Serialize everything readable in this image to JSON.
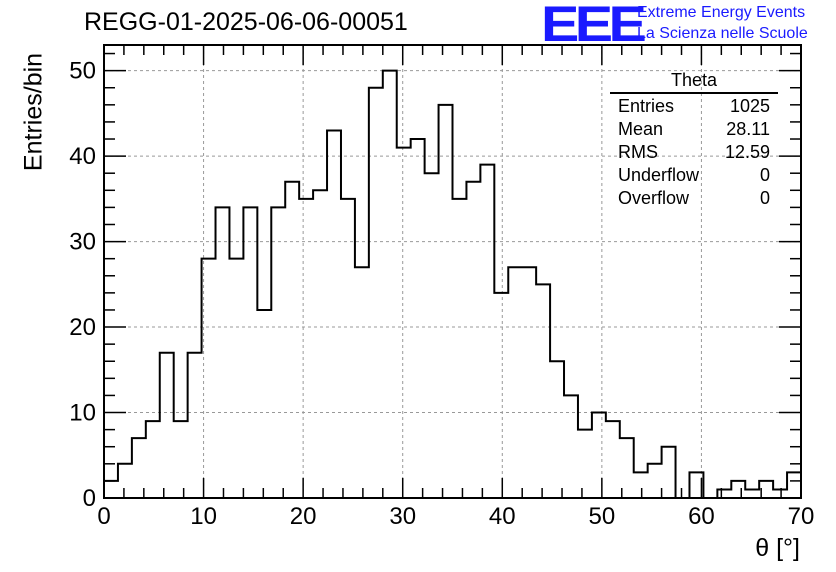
{
  "title": "REGG-01-2025-06-06-00051",
  "logo": {
    "mark": "EEE",
    "line1": "Extreme Energy Events",
    "line2": "La Scienza nelle Scuole",
    "color": "#1a1aff"
  },
  "stats": {
    "name": "Theta",
    "rows": [
      {
        "label": "Entries",
        "value": "1025"
      },
      {
        "label": "Mean",
        "value": "28.11"
      },
      {
        "label": "RMS",
        "value": "12.59"
      },
      {
        "label": "Underflow",
        "value": "0"
      },
      {
        "label": "Overflow",
        "value": "0"
      }
    ]
  },
  "chart_data": {
    "type": "bar",
    "subtype": "step-histogram",
    "title": "REGG-01-2025-06-06-00051",
    "xlabel": "θ [°]",
    "ylabel": "Entries/bin",
    "xlim": [
      0,
      70
    ],
    "ylim": [
      0,
      53
    ],
    "bin_width": 1.4,
    "grid": true,
    "x_ticks": [
      0,
      10,
      20,
      30,
      40,
      50,
      60,
      70
    ],
    "y_ticks": [
      0,
      10,
      20,
      30,
      40,
      50
    ],
    "values": [
      2,
      4,
      7,
      9,
      17,
      9,
      17,
      28,
      34,
      28,
      34,
      22,
      34,
      37,
      35,
      36,
      43,
      35,
      27,
      48,
      50,
      41,
      42,
      38,
      46,
      35,
      37,
      39,
      24,
      27,
      27,
      25,
      16,
      12,
      8,
      10,
      9,
      7,
      3,
      4,
      6,
      0,
      3,
      0,
      1,
      2,
      1,
      2,
      1,
      3
    ]
  }
}
